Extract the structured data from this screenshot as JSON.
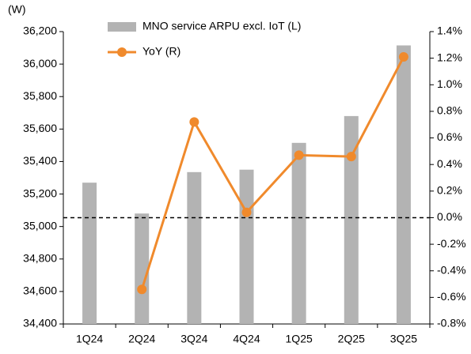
{
  "chart_data": {
    "type": "bar_line",
    "ylabel": "(W)",
    "categories": [
      "1Q24",
      "2Q24",
      "3Q24",
      "4Q24",
      "1Q25",
      "2Q25",
      "3Q25"
    ],
    "series": [
      {
        "name": "MNO service ARPU excl. IoT (L)",
        "color": "#b3b3b3",
        "type": "bar",
        "values": [
          35270,
          35080,
          35335,
          35350,
          35515,
          35680,
          36115
        ]
      },
      {
        "name": "YoY (R)",
        "color": "#f08a2c",
        "type": "line",
        "axis": "y2",
        "values": [
          null,
          -0.54,
          0.72,
          0.04,
          0.47,
          0.46,
          1.21
        ]
      }
    ],
    "ylim": [
      34400,
      36200
    ],
    "yticks": [
      {
        "value": 34400,
        "label": "34,400"
      },
      {
        "value": 34600,
        "label": "34,600"
      },
      {
        "value": 34800,
        "label": "34,800"
      },
      {
        "value": 35000,
        "label": "35,000"
      },
      {
        "value": 35200,
        "label": "35,200"
      },
      {
        "value": 35400,
        "label": "35,400"
      },
      {
        "value": 35600,
        "label": "35,600"
      },
      {
        "value": 35800,
        "label": "35,800"
      },
      {
        "value": 36000,
        "label": "36,000"
      },
      {
        "value": 36200,
        "label": "36,200"
      }
    ],
    "y2lim": [
      -0.8,
      1.4
    ],
    "y2ticks": [
      {
        "value": -0.8,
        "label": "-0.8%"
      },
      {
        "value": -0.6,
        "label": "-0.6%"
      },
      {
        "value": -0.4,
        "label": "-0.4%"
      },
      {
        "value": -0.2,
        "label": "-0.2%"
      },
      {
        "value": 0,
        "label": "0.0%"
      },
      {
        "value": 0.2,
        "label": "0.2%"
      },
      {
        "value": 0.4,
        "label": "0.4%"
      },
      {
        "value": 0.6,
        "label": "0.6%"
      },
      {
        "value": 0.8,
        "label": "0.8%"
      },
      {
        "value": 1.0,
        "label": "1.0%"
      },
      {
        "value": 1.2,
        "label": "1.2%"
      },
      {
        "value": 1.4,
        "label": "1.4%"
      }
    ],
    "reference_line_y2": 0,
    "legend": "top-left"
  }
}
